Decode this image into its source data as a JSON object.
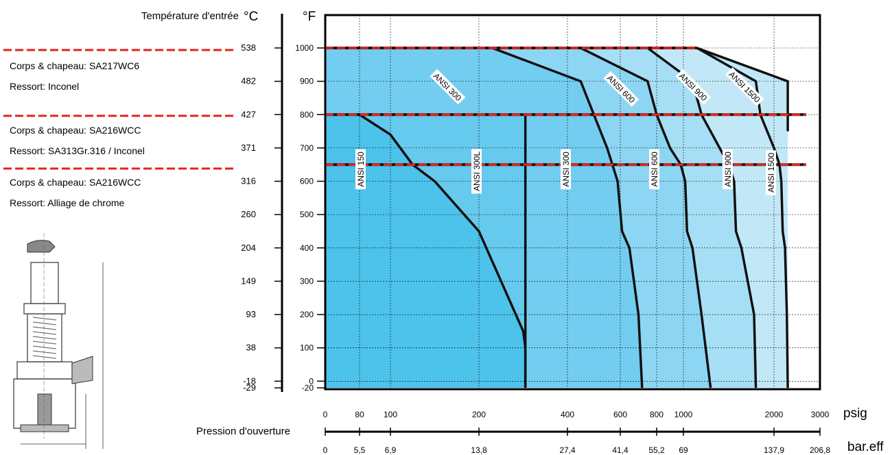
{
  "title_left": "Température d'entrée",
  "unit_c": "°C",
  "unit_f": "°F",
  "unit_psig": "psig",
  "unit_bar": "bar.eff",
  "xlabel": "Pression d'ouverture",
  "materials": [
    {
      "body": "Corps & chapeau: SA217WC6",
      "spring": "Ressort: Inconel"
    },
    {
      "body": "Corps & chapeau: SA216WCC",
      "spring": "Ressort: SA313Gr.316 / Inconel"
    },
    {
      "body": "Corps & chapeau: SA216WCC",
      "spring": "Ressort: Alliage de chrome"
    }
  ],
  "colors": {
    "zone1": "#4dc2ec",
    "zone2": "#73cdf0",
    "zone3": "#8dd6f3",
    "zone4": "#a6def5",
    "zone5": "#c2e8f8",
    "limit_line": "#e2231a",
    "curve": "#111111"
  },
  "chart_data": {
    "type": "area",
    "x_scale": "piecewise",
    "y_f_ticks": [
      -20,
      0,
      100,
      200,
      300,
      400,
      500,
      600,
      700,
      800,
      900,
      1000
    ],
    "y_f_tick_labels": [
      "-20",
      "0",
      "100",
      "200",
      "300",
      "400",
      "500",
      "600",
      "700",
      "800",
      "900",
      "1000"
    ],
    "y_c_tick_labels": [
      "-29",
      "-18",
      "38",
      "93",
      "149",
      "204",
      "260",
      "316",
      "371",
      "427",
      "482",
      "538"
    ],
    "x_psig_ticks": [
      0,
      80,
      100,
      200,
      400,
      600,
      800,
      1000,
      2000,
      3000
    ],
    "x_psig_labels": [
      "0",
      "80",
      "100",
      "200",
      "400",
      "600",
      "800",
      "1000",
      "2000",
      "3000"
    ],
    "x_bar_ticks": [
      0,
      80,
      100,
      200,
      400,
      600,
      800,
      1000,
      2000,
      3000
    ],
    "x_bar_labels": [
      "0",
      "5,5",
      "6,9",
      "13,8",
      "27,4",
      "41,4",
      "55,2",
      "69",
      "137,9",
      "206,8"
    ],
    "grid": true,
    "limit_lines_f": [
      1000,
      800,
      650
    ],
    "series": [
      {
        "name": "ANSI 150",
        "rotated_label": true,
        "points": [
          [
            80,
            800
          ],
          [
            100,
            740
          ],
          [
            125,
            650
          ],
          [
            150,
            600
          ],
          [
            200,
            450
          ],
          [
            250,
            300
          ],
          [
            300,
            150
          ],
          [
            305,
            100
          ],
          [
            305,
            -20
          ]
        ]
      },
      {
        "name": "ANSI 300L",
        "rotated_label": true,
        "points": [
          [
            305,
            800
          ],
          [
            305,
            -20
          ]
        ]
      },
      {
        "name": "ANSI 300",
        "rotated_label": true,
        "points": [
          [
            230,
            1000
          ],
          [
            450,
            900
          ],
          [
            500,
            800
          ]
        ]
      },
      {
        "name": "ANSI 300",
        "rotated_label": true,
        "points": [
          [
            500,
            800
          ],
          [
            550,
            700
          ],
          [
            570,
            650
          ],
          [
            590,
            600
          ],
          [
            610,
            450
          ],
          [
            650,
            400
          ],
          [
            700,
            200
          ],
          [
            720,
            -20
          ]
        ]
      },
      {
        "name": "ANSI 600",
        "rotated_label": true,
        "points": [
          [
            450,
            1000
          ],
          [
            750,
            900
          ],
          [
            800,
            800
          ]
        ]
      },
      {
        "name": "ANSI 600",
        "rotated_label": true,
        "points": [
          [
            800,
            800
          ],
          [
            900,
            700
          ],
          [
            980,
            650
          ],
          [
            1020,
            600
          ],
          [
            1040,
            450
          ],
          [
            1100,
            400
          ],
          [
            1200,
            200
          ],
          [
            1300,
            -20
          ]
        ]
      },
      {
        "name": "ANSI 900",
        "rotated_label": true,
        "points": [
          [
            750,
            1000
          ],
          [
            1100,
            900
          ],
          [
            1200,
            800
          ]
        ]
      },
      {
        "name": "ANSI 900",
        "rotated_label": true,
        "points": [
          [
            1200,
            800
          ],
          [
            1400,
            700
          ],
          [
            1500,
            650
          ],
          [
            1560,
            600
          ],
          [
            1580,
            450
          ],
          [
            1640,
            400
          ],
          [
            1780,
            200
          ],
          [
            1800,
            -20
          ]
        ]
      },
      {
        "name": "ANSI 1500",
        "rotated_label": true,
        "points": [
          [
            1150,
            1000
          ],
          [
            1800,
            900
          ],
          [
            1850,
            800
          ]
        ]
      },
      {
        "name": "ANSI 1500",
        "rotated_label": true,
        "points": [
          [
            1850,
            800
          ],
          [
            2000,
            700
          ],
          [
            2120,
            650
          ],
          [
            2160,
            600
          ],
          [
            2190,
            450
          ],
          [
            2240,
            400
          ],
          [
            2280,
            200
          ],
          [
            2300,
            -20
          ]
        ]
      },
      {
        "name": "ANSI 1500",
        "rotated_label": true,
        "points": [
          [
            1150,
            1000
          ],
          [
            2300,
            900
          ],
          [
            2300,
            750
          ]
        ]
      }
    ],
    "annotations": [
      "ANSI 300",
      "ANSI 600",
      "ANSI 900",
      "ANSI 1500",
      "ANSI 150",
      "ANSI 300L",
      "ANSI 300",
      "ANSI 600",
      "ANSI 900",
      "ANSI 1500"
    ]
  }
}
